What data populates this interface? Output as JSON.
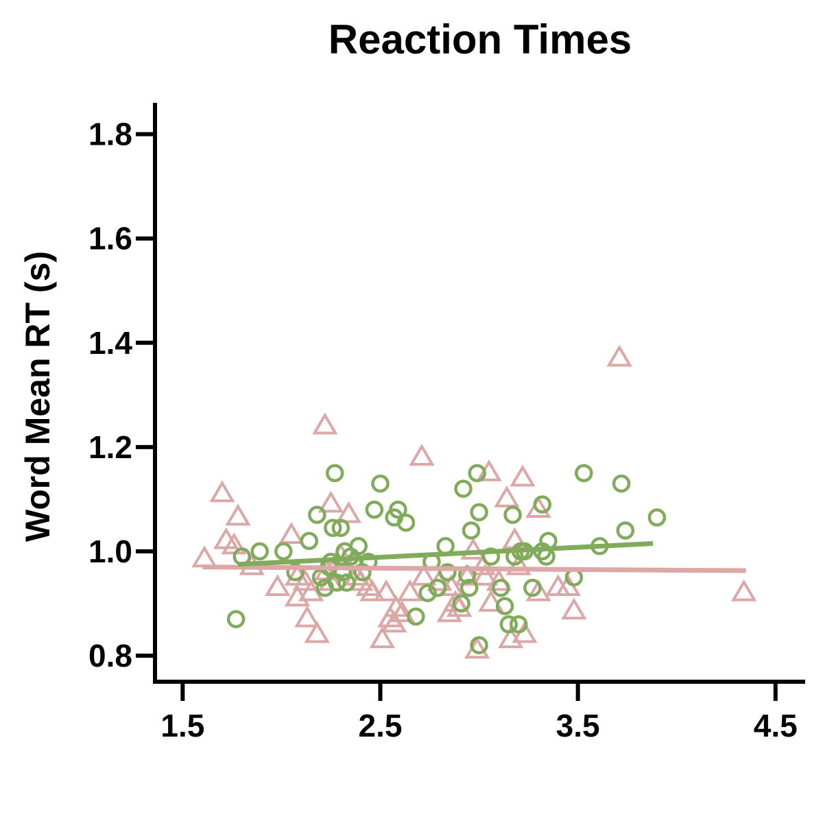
{
  "chart_data": {
    "type": "scatter",
    "title": "Reaction Times",
    "xlabel": "",
    "ylabel": "Word Mean RT (s)",
    "xlim": [
      1.36,
      4.65
    ],
    "ylim": [
      0.75,
      1.86
    ],
    "xticks": [
      "1.5",
      "2.5",
      "3.5",
      "4.5"
    ],
    "yticks": [
      "0.8",
      "1.0",
      "1.2",
      "1.4",
      "1.6",
      "1.8"
    ],
    "grid": false,
    "legend": "none",
    "series": [
      {
        "marker": "triangle",
        "color": "#dba7a7",
        "trend": {
          "x": [
            1.6,
            4.35
          ],
          "y": [
            0.97,
            0.963
          ]
        },
        "points": [
          [
            1.61,
            0.985
          ],
          [
            1.7,
            1.11
          ],
          [
            1.72,
            1.02
          ],
          [
            1.78,
            1.065
          ],
          [
            1.76,
            1.01
          ],
          [
            1.85,
            0.97
          ],
          [
            1.98,
            0.93
          ],
          [
            2.05,
            1.03
          ],
          [
            2.08,
            0.95
          ],
          [
            2.08,
            0.91
          ],
          [
            2.12,
            0.94
          ],
          [
            2.13,
            0.87
          ],
          [
            2.15,
            0.92
          ],
          [
            2.18,
            0.84
          ],
          [
            2.22,
            1.24
          ],
          [
            2.25,
            1.09
          ],
          [
            2.23,
            0.96
          ],
          [
            2.25,
            0.94
          ],
          [
            2.3,
            0.99
          ],
          [
            2.34,
            1.07
          ],
          [
            2.38,
            0.95
          ],
          [
            2.4,
            0.94
          ],
          [
            2.44,
            0.93
          ],
          [
            2.46,
            0.92
          ],
          [
            2.53,
            0.92
          ],
          [
            2.51,
            0.83
          ],
          [
            2.55,
            0.87
          ],
          [
            2.57,
            0.86
          ],
          [
            2.58,
            0.89
          ],
          [
            2.61,
            0.88
          ],
          [
            2.65,
            0.92
          ],
          [
            2.71,
            1.18
          ],
          [
            2.72,
            0.95
          ],
          [
            2.8,
            0.94
          ],
          [
            2.86,
            0.93
          ],
          [
            2.85,
            0.88
          ],
          [
            2.88,
            0.9
          ],
          [
            2.9,
            0.89
          ],
          [
            2.94,
            0.95
          ],
          [
            2.97,
            1.0
          ],
          [
            2.99,
            0.81
          ],
          [
            3.02,
            0.97
          ],
          [
            3.03,
            0.95
          ],
          [
            3.05,
            1.15
          ],
          [
            3.06,
            0.9
          ],
          [
            3.1,
            0.94
          ],
          [
            3.14,
            1.1
          ],
          [
            3.18,
            1.02
          ],
          [
            3.16,
            0.83
          ],
          [
            3.2,
            0.97
          ],
          [
            3.22,
            1.14
          ],
          [
            3.23,
            0.84
          ],
          [
            3.3,
            1.08
          ],
          [
            3.3,
            0.92
          ],
          [
            3.4,
            0.93
          ],
          [
            3.45,
            0.93
          ],
          [
            3.48,
            0.885
          ],
          [
            3.71,
            1.37
          ],
          [
            4.34,
            0.92
          ]
        ]
      },
      {
        "marker": "circle",
        "color": "#80ab5a",
        "trend": {
          "x": [
            1.78,
            3.88
          ],
          "y": [
            0.975,
            1.015
          ]
        },
        "points": [
          [
            1.77,
            0.87
          ],
          [
            1.8,
            0.99
          ],
          [
            1.89,
            1.0
          ],
          [
            2.01,
            1.0
          ],
          [
            2.07,
            0.96
          ],
          [
            2.14,
            1.02
          ],
          [
            2.18,
            1.07
          ],
          [
            2.2,
            0.95
          ],
          [
            2.22,
            0.93
          ],
          [
            2.24,
            0.97
          ],
          [
            2.25,
            0.98
          ],
          [
            2.26,
            1.045
          ],
          [
            2.27,
            1.15
          ],
          [
            2.28,
            0.94
          ],
          [
            2.3,
            1.045
          ],
          [
            2.31,
            0.96
          ],
          [
            2.32,
            1.0
          ],
          [
            2.33,
            0.94
          ],
          [
            2.35,
            0.99
          ],
          [
            2.37,
            0.98
          ],
          [
            2.39,
            1.01
          ],
          [
            2.41,
            0.96
          ],
          [
            2.44,
            0.98
          ],
          [
            2.47,
            1.08
          ],
          [
            2.5,
            1.13
          ],
          [
            2.57,
            1.065
          ],
          [
            2.59,
            1.08
          ],
          [
            2.63,
            1.055
          ],
          [
            2.68,
            0.875
          ],
          [
            2.74,
            0.92
          ],
          [
            2.76,
            0.98
          ],
          [
            2.79,
            0.93
          ],
          [
            2.83,
            1.01
          ],
          [
            2.84,
            0.96
          ],
          [
            2.91,
            0.9
          ],
          [
            2.92,
            1.12
          ],
          [
            2.94,
            0.955
          ],
          [
            2.95,
            0.93
          ],
          [
            2.96,
            1.04
          ],
          [
            2.99,
            1.15
          ],
          [
            3.0,
            1.075
          ],
          [
            3.0,
            0.82
          ],
          [
            3.06,
            0.99
          ],
          [
            3.11,
            0.93
          ],
          [
            3.13,
            0.895
          ],
          [
            3.15,
            0.86
          ],
          [
            3.17,
            1.07
          ],
          [
            3.18,
            0.99
          ],
          [
            3.2,
            0.86
          ],
          [
            3.21,
            1.0
          ],
          [
            3.23,
            1.0
          ],
          [
            3.27,
            0.93
          ],
          [
            3.32,
            1.09
          ],
          [
            3.32,
            1.0
          ],
          [
            3.34,
            0.99
          ],
          [
            3.35,
            1.02
          ],
          [
            3.48,
            0.95
          ],
          [
            3.53,
            1.15
          ],
          [
            3.61,
            1.01
          ],
          [
            3.72,
            1.13
          ],
          [
            3.74,
            1.04
          ],
          [
            3.9,
            1.065
          ]
        ]
      }
    ]
  }
}
